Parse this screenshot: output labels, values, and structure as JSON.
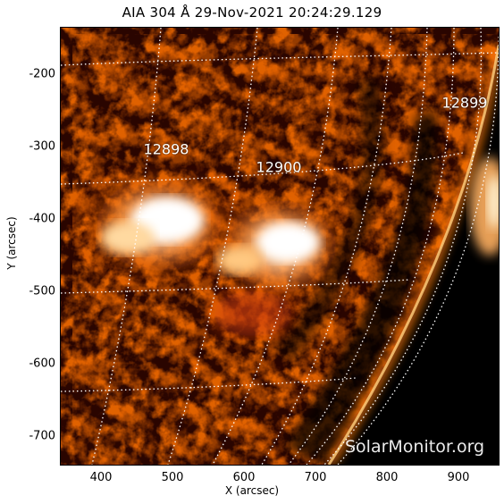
{
  "header": {
    "title": "AIA 304 Å 29-Nov-2021 20:24:29.129"
  },
  "axes": {
    "x_label": "X (arcsec)",
    "y_label": "Y (arcsec)",
    "x_ticks": [
      "400",
      "500",
      "600",
      "700",
      "800",
      "900"
    ],
    "y_ticks": [
      "-200",
      "-300",
      "-400",
      "-500",
      "-600",
      "-700"
    ]
  },
  "regions": [
    {
      "id": "12898"
    },
    {
      "id": "12900"
    },
    {
      "id": "12899"
    }
  ],
  "watermark": "SolarMonitor.org",
  "colors": {
    "background": "#000000",
    "palette_dark": "#3a0800",
    "palette_mid": "#b32800",
    "palette_bright": "#ff8a1a",
    "palette_hot": "#ffffff",
    "grid": "#ffffff"
  }
}
